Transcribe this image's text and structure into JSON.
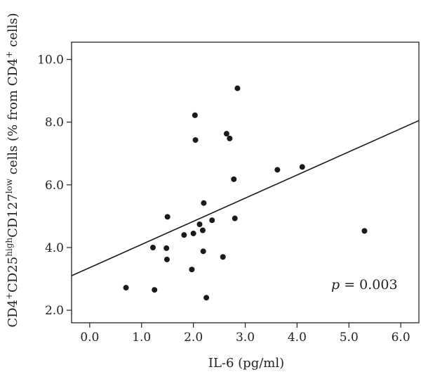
{
  "chart_data": {
    "type": "scatter",
    "title": "",
    "xlabel": "IL-6 (pg/ml)",
    "ylabel_parts": {
      "a": "CD4",
      "a_sup": "+",
      "b": "CD25",
      "b_sup": "high",
      "c": "CD127",
      "c_sup": "low",
      "d": " cells (% from CD4",
      "d_sup": "+",
      "e": " cells)"
    },
    "xlim": [
      -0.35,
      6.35
    ],
    "ylim": [
      1.6,
      10.55
    ],
    "x_ticks": [
      {
        "value": 0.0,
        "label": "0.0"
      },
      {
        "value": 1.0,
        "label": "1.0"
      },
      {
        "value": 2.0,
        "label": "2.0"
      },
      {
        "value": 3.0,
        "label": "3.0"
      },
      {
        "value": 4.0,
        "label": "4.0"
      },
      {
        "value": 5.0,
        "label": "5.0"
      },
      {
        "value": 6.0,
        "label": "6.0"
      }
    ],
    "y_ticks": [
      {
        "value": 2.0,
        "label": "2.0"
      },
      {
        "value": 4.0,
        "label": "4.0"
      },
      {
        "value": 6.0,
        "label": "6.0"
      },
      {
        "value": 8.0,
        "label": "8.0"
      },
      {
        "value": 10.0,
        "label": "10.0"
      }
    ],
    "points": [
      {
        "x": 0.7,
        "y": 2.72
      },
      {
        "x": 1.22,
        "y": 4.0
      },
      {
        "x": 1.25,
        "y": 2.65
      },
      {
        "x": 1.48,
        "y": 3.98
      },
      {
        "x": 1.49,
        "y": 3.62
      },
      {
        "x": 1.5,
        "y": 4.98
      },
      {
        "x": 1.82,
        "y": 4.4
      },
      {
        "x": 1.97,
        "y": 3.3
      },
      {
        "x": 2.0,
        "y": 4.45
      },
      {
        "x": 2.03,
        "y": 8.22
      },
      {
        "x": 2.04,
        "y": 7.43
      },
      {
        "x": 2.12,
        "y": 4.74
      },
      {
        "x": 2.18,
        "y": 4.55
      },
      {
        "x": 2.19,
        "y": 3.88
      },
      {
        "x": 2.2,
        "y": 5.42
      },
      {
        "x": 2.25,
        "y": 2.4
      },
      {
        "x": 2.36,
        "y": 4.87
      },
      {
        "x": 2.57,
        "y": 3.7
      },
      {
        "x": 2.64,
        "y": 7.63
      },
      {
        "x": 2.7,
        "y": 7.48
      },
      {
        "x": 2.78,
        "y": 6.18
      },
      {
        "x": 2.8,
        "y": 4.93
      },
      {
        "x": 2.85,
        "y": 9.08
      },
      {
        "x": 3.62,
        "y": 6.48
      },
      {
        "x": 4.1,
        "y": 6.57
      },
      {
        "x": 5.3,
        "y": 4.53
      }
    ],
    "regression_line": {
      "x0": -0.35,
      "y0": 3.1,
      "x1": 6.35,
      "y1": 8.05
    },
    "annotation": {
      "italic": "p",
      "rest": " = 0.003"
    },
    "colors": {
      "points": "#1a1a1a",
      "line": "#1a1a1a",
      "axis": "#222222"
    }
  }
}
